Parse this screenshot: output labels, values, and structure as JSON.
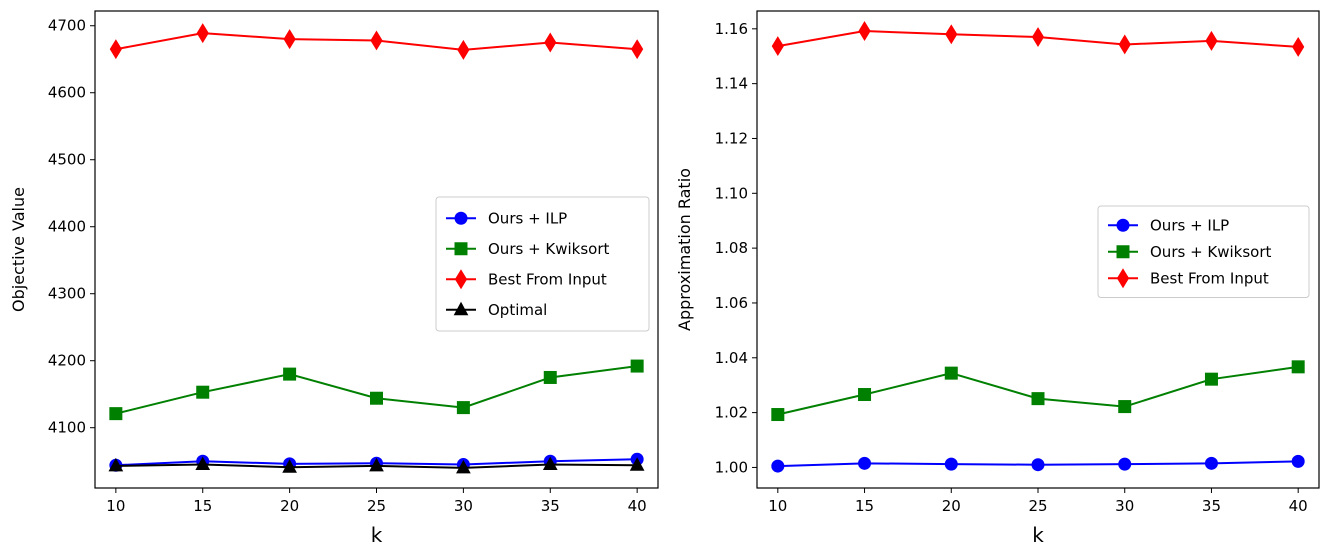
{
  "chart_data": [
    {
      "type": "line",
      "xlabel": "k",
      "ylabel": "Objective Value",
      "x": [
        10,
        15,
        20,
        25,
        30,
        35,
        40
      ],
      "xlim": [
        8.8,
        41.2
      ],
      "ylim": [
        4010,
        4722
      ],
      "yticks": [
        4100,
        4200,
        4300,
        4400,
        4500,
        4600,
        4700
      ],
      "legend_position": "center-right",
      "series": [
        {
          "name": "Ours + ILP",
          "color": "#0000ff",
          "marker": "circle",
          "values": [
            4044,
            4050,
            4046,
            4047,
            4045,
            4050,
            4053
          ]
        },
        {
          "name": "Ours + Kwiksort",
          "color": "#008000",
          "marker": "square",
          "values": [
            4121,
            4153,
            4180,
            4144,
            4130,
            4175,
            4192
          ]
        },
        {
          "name": "Best From Input",
          "color": "#ff0000",
          "marker": "diamond",
          "values": [
            4665,
            4689,
            4680,
            4678,
            4664,
            4675,
            4665
          ]
        },
        {
          "name": "Optimal",
          "color": "#000000",
          "marker": "triangle",
          "values": [
            4043,
            4045,
            4041,
            4043,
            4040,
            4045,
            4044
          ]
        }
      ]
    },
    {
      "type": "line",
      "xlabel": "k",
      "ylabel": "Approximation Ratio",
      "x": [
        10,
        15,
        20,
        25,
        30,
        35,
        40
      ],
      "xlim": [
        8.8,
        41.2
      ],
      "ylim": [
        0.9925,
        1.1665
      ],
      "yticks": [
        1.0,
        1.02,
        1.04,
        1.06,
        1.08,
        1.1,
        1.12,
        1.14,
        1.16
      ],
      "legend_position": "center-right",
      "series": [
        {
          "name": "Ours + ILP",
          "color": "#0000ff",
          "marker": "circle",
          "values": [
            1.0005,
            1.0015,
            1.0012,
            1.001,
            1.0012,
            1.0015,
            1.0022
          ]
        },
        {
          "name": "Ours + Kwiksort",
          "color": "#008000",
          "marker": "square",
          "values": [
            1.0193,
            1.0266,
            1.0344,
            1.0251,
            1.0222,
            1.0322,
            1.0367
          ]
        },
        {
          "name": "Best From Input",
          "color": "#ff0000",
          "marker": "diamond",
          "values": [
            1.1537,
            1.1592,
            1.158,
            1.157,
            1.1543,
            1.1556,
            1.1534
          ]
        }
      ]
    }
  ]
}
